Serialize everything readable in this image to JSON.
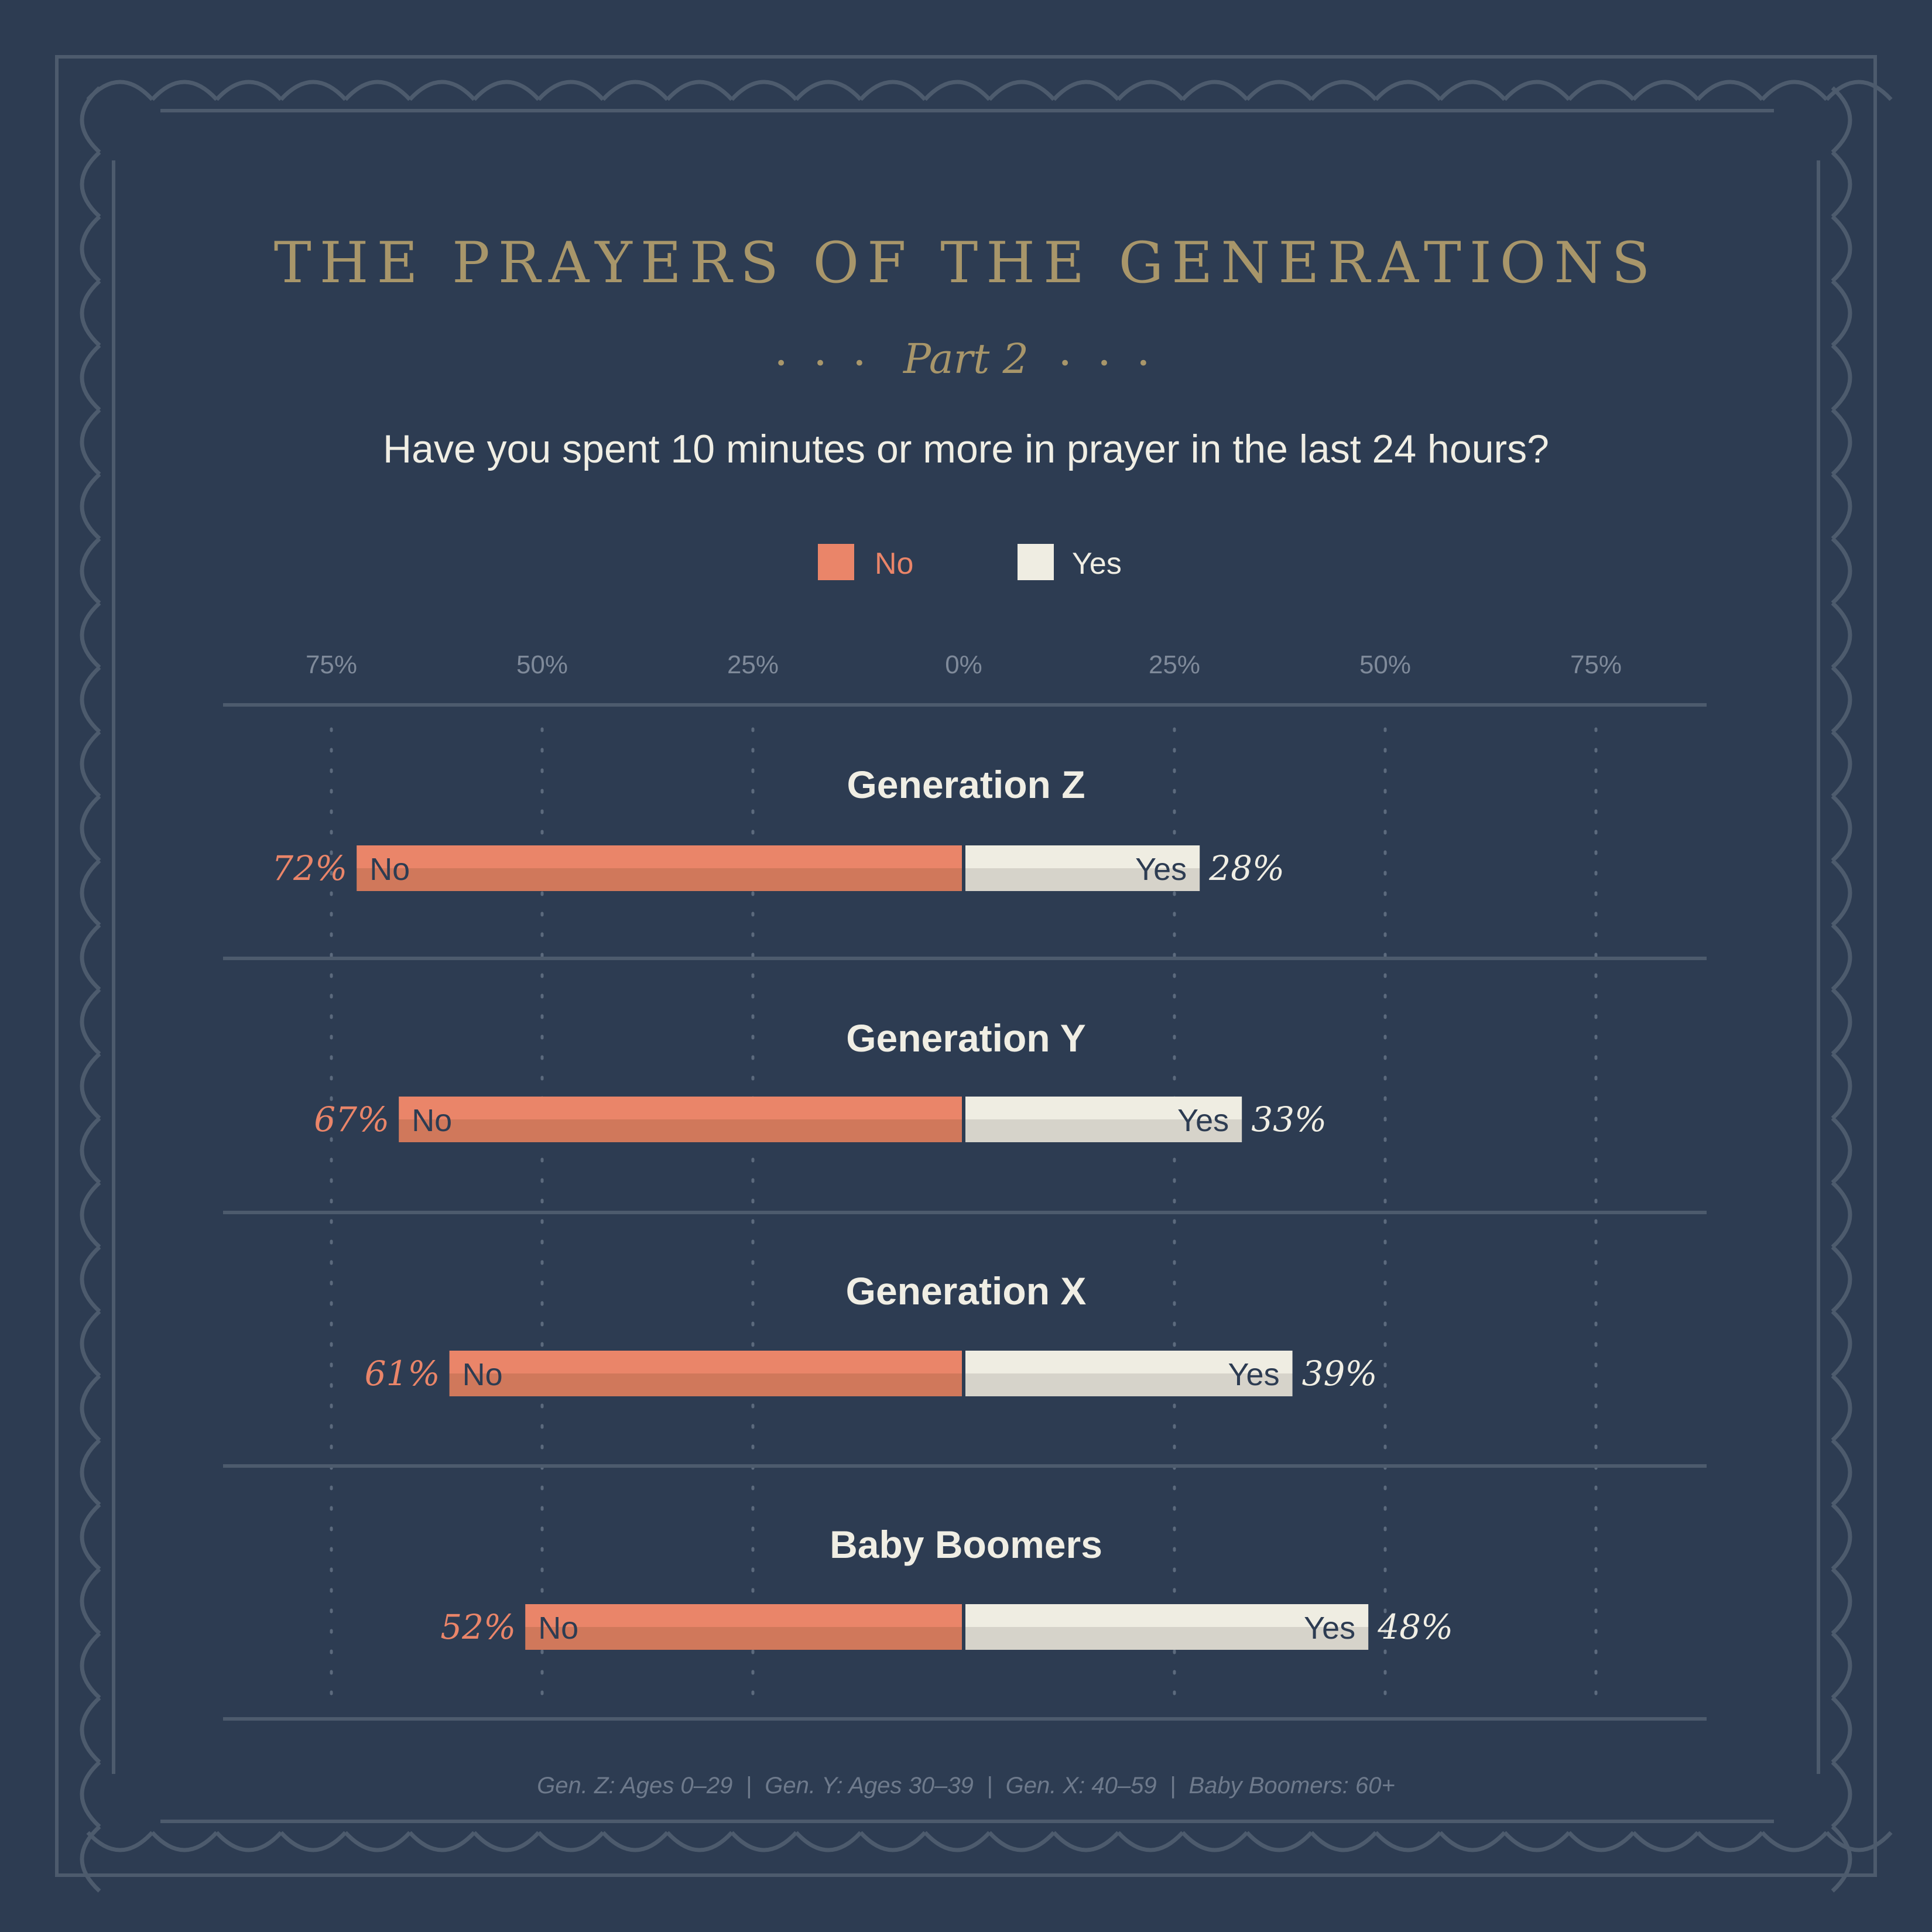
{
  "title": "THE PRAYERS OF THE GENERATIONS",
  "subtitle": "Part 2",
  "subtitle_dots": "• • •",
  "question": "Have you spent 10 minutes or more in prayer in the last 24 hours?",
  "footer": "Gen. Z: Ages 0–29  |  Gen. Y: Ages 30–39  |  Gen. X: 40–59  |  Baby Boomers: 60+",
  "colors": {
    "background": "#2d3c52",
    "no": "#ea8569",
    "no_shade": "#d0785b",
    "yes": "#efede2",
    "yes_shade": "#d6d3ca",
    "title": "#a8966a",
    "frame": "#4d5b6d",
    "text": "#f0eee4",
    "muted": "#7f8a9a"
  },
  "chart_data": {
    "type": "bar",
    "orientation": "horizontal-diverging",
    "title": "Have you spent 10 minutes or more in prayer in the last 24 hours?",
    "legend": [
      "No",
      "Yes"
    ],
    "legend_placement": "top",
    "categories": [
      "Generation Z",
      "Generation Y",
      "Generation X",
      "Baby Boomers"
    ],
    "series": [
      {
        "name": "No",
        "values": [
          72,
          67,
          61,
          52
        ],
        "labels": [
          "72%",
          "67%",
          "61%",
          "52%"
        ]
      },
      {
        "name": "Yes",
        "values": [
          28,
          33,
          39,
          48
        ],
        "labels": [
          "28%",
          "33%",
          "39%",
          "48%"
        ]
      }
    ],
    "xticks": [
      -75,
      -50,
      -25,
      0,
      25,
      50,
      75
    ],
    "xtick_labels": [
      "75%",
      "50%",
      "25%",
      "0%",
      "25%",
      "50%",
      "75%"
    ],
    "xlim": [
      -75,
      75
    ],
    "grid": "dotted vertical",
    "bar_inner_labels": [
      "No",
      "Yes"
    ]
  }
}
